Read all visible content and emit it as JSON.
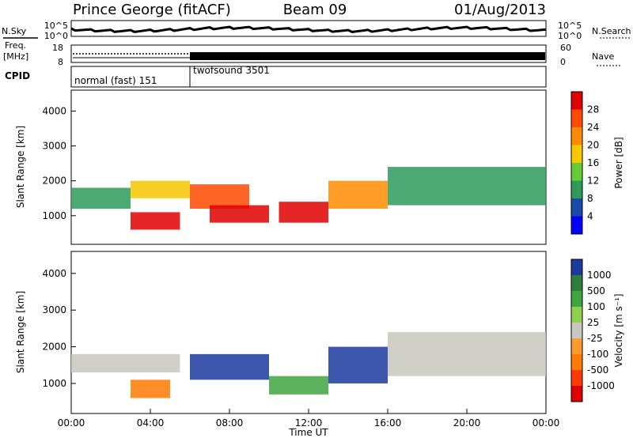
{
  "header": {
    "title": "Prince George (fitACF)",
    "beam": "Beam 09",
    "date": "01/Aug/2013"
  },
  "summary_panels": {
    "nsky_label": "N.Sky",
    "nsearch_label": "N.Search",
    "freq_label_1": "Freq.",
    "freq_label_2": "[MHz]",
    "nave_label": "Nave",
    "cpid_label": "CPID",
    "noise_ticks_left": [
      "10^5",
      "10^0"
    ],
    "noise_ticks_right": [
      "10^5",
      "10^0"
    ],
    "freq_ticks_left": [
      "18",
      "8"
    ],
    "nave_ticks_right": [
      "60",
      "0"
    ],
    "cpid_segments": [
      {
        "label": "normal (fast) 151",
        "start_hour": 0,
        "end_hour": 6
      },
      {
        "label": "twofsound 3501",
        "start_hour": 6,
        "end_hour": 24
      }
    ]
  },
  "power_colorbar": {
    "label": "Power [dB]",
    "ticks": [
      "28",
      "24",
      "20",
      "16",
      "12",
      "8",
      "4"
    ],
    "colors": [
      "#e00000",
      "#ff4a00",
      "#ff8c00",
      "#f5c800",
      "#66cc33",
      "#2e9a5a",
      "#1a4aa8",
      "#0000ff"
    ]
  },
  "velocity_colorbar": {
    "label": "Velocity [m s⁻¹]",
    "ticks": [
      "1000",
      "500",
      "100",
      "25",
      "-25",
      "-100",
      "-500",
      "-1000"
    ],
    "colors": [
      "#1a3a9c",
      "#2e7d3a",
      "#3fa63f",
      "#8fd14f",
      "#c8c8c0",
      "#ff9a2e",
      "#ff7a00",
      "#ff3a00",
      "#e00000"
    ]
  },
  "chart_data": [
    {
      "type": "heatmap",
      "name": "power",
      "ylabel": "Slant Range [km]",
      "ylim": [
        180,
        4600
      ],
      "xlim": [
        0,
        24
      ],
      "y_ticks": [
        "4000",
        "3000",
        "2000",
        "1000"
      ],
      "regions": [
        {
          "t0": 0.0,
          "t1": 3.0,
          "r0": 1200,
          "r1": 1800,
          "level": 12
        },
        {
          "t0": 3.0,
          "t1": 5.5,
          "r0": 600,
          "r1": 1100,
          "level": 28
        },
        {
          "t0": 3.0,
          "t1": 6.0,
          "r0": 1500,
          "r1": 2000,
          "level": 16
        },
        {
          "t0": 6.0,
          "t1": 9.0,
          "r0": 1200,
          "r1": 1900,
          "level": 22
        },
        {
          "t0": 7.0,
          "t1": 10.0,
          "r0": 800,
          "r1": 1300,
          "level": 28
        },
        {
          "t0": 10.5,
          "t1": 13.0,
          "r0": 800,
          "r1": 1400,
          "level": 28
        },
        {
          "t0": 13.0,
          "t1": 16.0,
          "r0": 1200,
          "r1": 2000,
          "level": 20
        },
        {
          "t0": 16.0,
          "t1": 24.0,
          "r0": 1300,
          "r1": 2400,
          "level": 12
        }
      ]
    },
    {
      "type": "heatmap",
      "name": "velocity",
      "ylabel": "Slant Range [km]",
      "xlabel": "Time UT",
      "ylim": [
        180,
        4600
      ],
      "xlim": [
        0,
        24
      ],
      "y_ticks": [
        "4000",
        "3000",
        "2000",
        "1000"
      ],
      "x_ticks": [
        "00:00",
        "04:00",
        "08:00",
        "12:00",
        "16:00",
        "20:00",
        "00:00"
      ],
      "regions": [
        {
          "t0": 0.0,
          "t1": 5.5,
          "r0": 1300,
          "r1": 1800,
          "velocity": 0
        },
        {
          "t0": 3.0,
          "t1": 5.0,
          "r0": 600,
          "r1": 1100,
          "velocity": -500
        },
        {
          "t0": 6.0,
          "t1": 10.0,
          "r0": 1100,
          "r1": 1800,
          "velocity": 500
        },
        {
          "t0": 10.0,
          "t1": 13.0,
          "r0": 700,
          "r1": 1200,
          "velocity": 100
        },
        {
          "t0": 13.0,
          "t1": 16.0,
          "r0": 1000,
          "r1": 2000,
          "velocity": 500
        },
        {
          "t0": 16.0,
          "t1": 24.0,
          "r0": 1200,
          "r1": 2400,
          "velocity": 0
        }
      ]
    }
  ]
}
